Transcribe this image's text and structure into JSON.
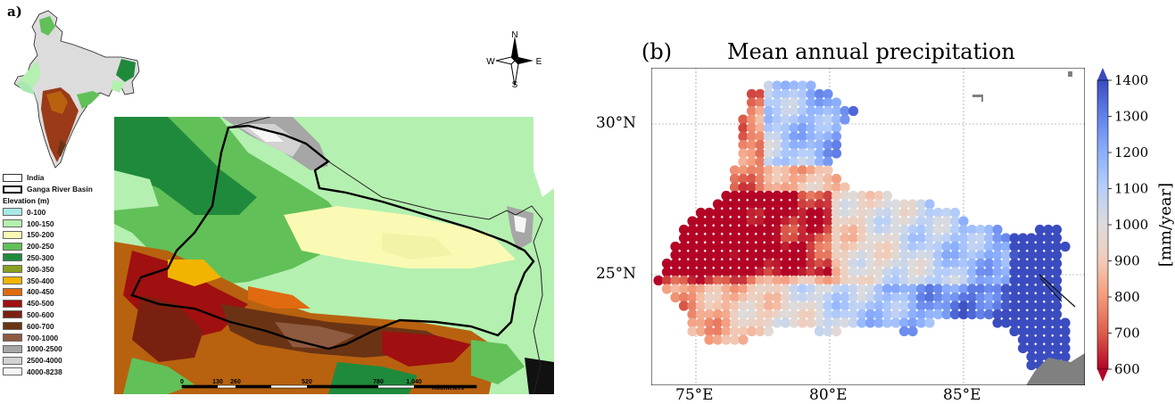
{
  "panel_a": {
    "label": "a)",
    "legend": {
      "boundaries": [
        {
          "name": "India",
          "style": "thin"
        },
        {
          "name": "Ganga River Basin",
          "style": "thick"
        }
      ],
      "heading": "Elevation (m)",
      "classes": [
        {
          "range": "0-100",
          "color": "#a8e8e6"
        },
        {
          "range": "100-150",
          "color": "#b4f0b0"
        },
        {
          "range": "150-200",
          "color": "#fafab4"
        },
        {
          "range": "200-250",
          "color": "#62c058"
        },
        {
          "range": "250-300",
          "color": "#1f8a3c"
        },
        {
          "range": "300-350",
          "color": "#88a020"
        },
        {
          "range": "350-400",
          "color": "#f2b400"
        },
        {
          "range": "400-450",
          "color": "#e06a10"
        },
        {
          "range": "450-500",
          "color": "#a01010"
        },
        {
          "range": "500-600",
          "color": "#7a2010"
        },
        {
          "range": "600-700",
          "color": "#6a3414"
        },
        {
          "range": "700-1000",
          "color": "#8e5a40"
        },
        {
          "range": "1000-2500",
          "color": "#a6a6a6"
        },
        {
          "range": "2500-4000",
          "color": "#d2d2d2"
        },
        {
          "range": "4000-8238",
          "color": "#f6f6f6"
        }
      ]
    },
    "compass": {
      "n": "N",
      "s": "S",
      "e": "E",
      "w": "W"
    },
    "scale_bar": {
      "ticks": [
        "0",
        "130",
        "260",
        "520",
        "780",
        "1,040"
      ],
      "unit": "Kilometers"
    }
  },
  "panel_b": {
    "label": "(b)",
    "title": "Mean annual precipitation",
    "y_ticks": [
      "30°N",
      "25°N"
    ],
    "x_ticks": [
      "75°E",
      "80°E",
      "85°E"
    ],
    "colorbar": {
      "label": "[mm/year]",
      "ticks": [
        "1400",
        "1300",
        "1200",
        "1100",
        "1000",
        "900",
        "800",
        "700",
        "600"
      ],
      "min": 600,
      "max": 1400,
      "colors": [
        "#b40426",
        "#dc5d4a",
        "#f49a7b",
        "#f2cbb7",
        "#dddcdc",
        "#b7cff9",
        "#8caffe",
        "#6282ea",
        "#3b4cc0"
      ]
    }
  }
}
